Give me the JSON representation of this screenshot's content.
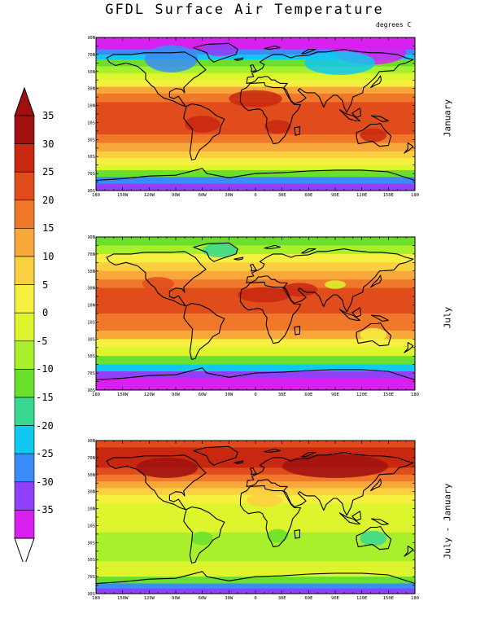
{
  "title": "GFDL Surface Air Temperature",
  "units": "degrees C",
  "colorbar": {
    "labels": [
      "35",
      "30",
      "25",
      "20",
      "15",
      "10",
      "5",
      "0",
      "-5",
      "-10",
      "-15",
      "-20",
      "-25",
      "-30",
      "-35"
    ],
    "colors": [
      "#a01010",
      "#c82810",
      "#e04c1c",
      "#f0782a",
      "#f8a83a",
      "#fbd040",
      "#f5f040",
      "#dcf52c",
      "#a8f02c",
      "#6ae02c",
      "#38d890",
      "#10c8f0",
      "#3a8cf8",
      "#9040f8",
      "#d820f0"
    ]
  },
  "panels": [
    {
      "label": "January"
    },
    {
      "label": "July"
    },
    {
      "label": "July - January"
    }
  ],
  "axes": {
    "lon_labels": [
      "180",
      "150W",
      "120W",
      "90W",
      "60W",
      "30W",
      "0",
      "30E",
      "60E",
      "90E",
      "120E",
      "150E",
      "180"
    ],
    "lat_labels": [
      "90N",
      "70N",
      "50N",
      "30N",
      "10N",
      "10S",
      "30S",
      "50S",
      "70S",
      "90S"
    ]
  }
}
